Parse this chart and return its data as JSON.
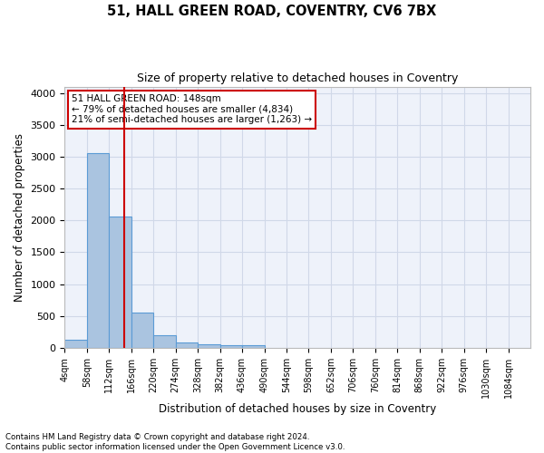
{
  "title_line1": "51, HALL GREEN ROAD, COVENTRY, CV6 7BX",
  "title_line2": "Size of property relative to detached houses in Coventry",
  "xlabel": "Distribution of detached houses by size in Coventry",
  "ylabel": "Number of detached properties",
  "footnote1": "Contains HM Land Registry data © Crown copyright and database right 2024.",
  "footnote2": "Contains public sector information licensed under the Open Government Licence v3.0.",
  "annotation_line1": "51 HALL GREEN ROAD: 148sqm",
  "annotation_line2": "← 79% of detached houses are smaller (4,834)",
  "annotation_line3": "21% of semi-detached houses are larger (1,263) →",
  "property_size": 148,
  "bin_width": 54,
  "bin_starts": [
    4,
    58,
    112,
    166,
    220,
    274,
    328,
    382,
    436,
    490,
    544,
    598,
    652,
    706,
    760,
    814,
    868,
    922,
    976,
    1030
  ],
  "bar_heights": [
    130,
    3060,
    2060,
    560,
    200,
    80,
    55,
    40,
    40,
    0,
    0,
    0,
    0,
    0,
    0,
    0,
    0,
    0,
    0,
    0
  ],
  "bar_color": "#aac4e0",
  "bar_edgecolor": "#5b9bd5",
  "vline_color": "#cc0000",
  "vline_x": 148,
  "grid_color": "#d0d8e8",
  "bg_color": "#eef2fa",
  "annotation_box_color": "#cc0000",
  "ylim": [
    0,
    4100
  ],
  "yticks": [
    0,
    500,
    1000,
    1500,
    2000,
    2500,
    3000,
    3500,
    4000
  ],
  "tick_labels": [
    "4sqm",
    "58sqm",
    "112sqm",
    "166sqm",
    "220sqm",
    "274sqm",
    "328sqm",
    "382sqm",
    "436sqm",
    "490sqm",
    "544sqm",
    "598sqm",
    "652sqm",
    "706sqm",
    "760sqm",
    "814sqm",
    "868sqm",
    "922sqm",
    "976sqm",
    "1030sqm",
    "1084sqm"
  ]
}
